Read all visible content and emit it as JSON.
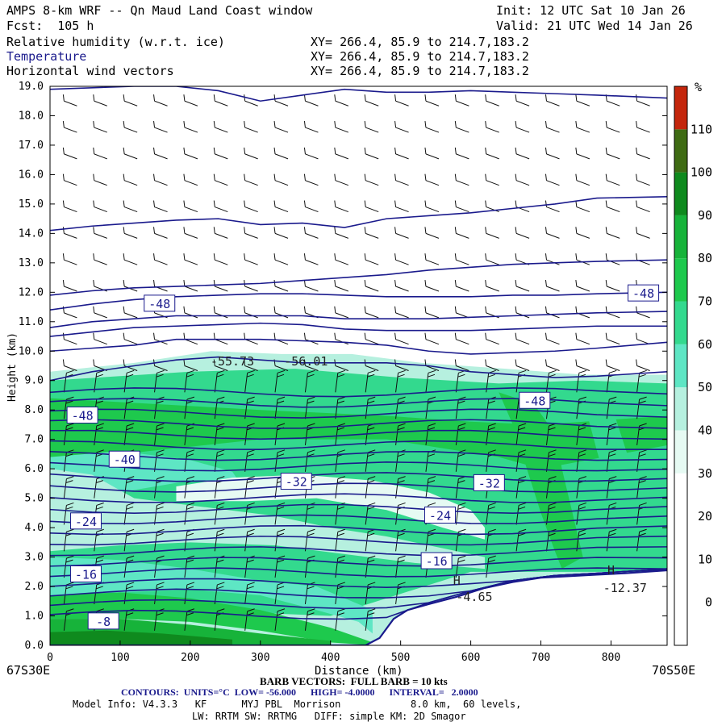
{
  "header": {
    "title": "AMPS 8-km WRF -- Qn Maud Land Coast window",
    "init": "Init: 12 UTC Sat 10 Jan 26",
    "fcst": "Fcst:  105 h",
    "valid": "Valid: 21 UTC Wed 14 Jan 26",
    "fields": [
      {
        "name": "Relative humidity (w.r.t. ice)",
        "xy": "XY= 266.4, 85.9 to 214.7,183.2"
      },
      {
        "name": "Temperature",
        "xy": "XY= 266.4, 85.9 to 214.7,183.2"
      },
      {
        "name": "Horizontal wind vectors",
        "xy": "XY= 266.4, 85.9 to 214.7,183.2"
      }
    ]
  },
  "footer": {
    "left_endpoint": "67S30E",
    "right_endpoint": "70S50E",
    "barb_note": "BARB VECTORS:  FULL BARB = 10 kts",
    "contours_line": "CONTOURS:  UNITS=°C  LOW= -56.000      HIGH= -4.0000      INTERVAL=   2.0000",
    "model_line1": "Model Info: V4.3.3   KF      MYJ PBL  Morrison            8.0 km,  60 levels,",
    "model_line2": "LW: RRTM SW: RRTMG   DIFF: simple KM: 2D Smagor"
  },
  "colors": {
    "temperature_contour": "#1a1a8c",
    "terrain": "#ffffff",
    "rh_bands": [
      "#ffffff",
      "#ffffff",
      "#ffffff",
      "#ffffff",
      "#e6faf3",
      "#b6f0df",
      "#5ee6c4",
      "#33d98e",
      "#1ec94d",
      "#17b33a",
      "#0f8a1e",
      "#3f6b13",
      "#c4260c"
    ]
  },
  "chart_data": {
    "type": "cross-section",
    "xlabel": "Distance (km)",
    "ylabel": "Height (km)",
    "xlim": [
      0,
      880
    ],
    "ylim": [
      0,
      19
    ],
    "x_ticks": [
      0,
      100,
      200,
      300,
      400,
      500,
      600,
      700,
      800
    ],
    "y_ticks": [
      "0.0",
      "1.0",
      "2.0",
      "3.0",
      "4.0",
      "5.0",
      "6.0",
      "7.0",
      "8.0",
      "9.0",
      "10.0",
      "11.0",
      "12.0",
      "13.0",
      "14.0",
      "15.0",
      "16.0",
      "17.0",
      "18.0",
      "19.0"
    ],
    "colorbar": {
      "unit": "%",
      "labels": [
        0,
        10,
        20,
        30,
        40,
        50,
        60,
        70,
        80,
        90,
        100,
        110
      ]
    },
    "terrain_profile": {
      "x": [
        0,
        100,
        200,
        300,
        400,
        450,
        470,
        490,
        510,
        540,
        580,
        620,
        660,
        700,
        740,
        780,
        820,
        880
      ],
      "z": [
        0,
        0,
        0,
        0,
        0,
        0,
        0.25,
        0.9,
        1.2,
        1.4,
        1.65,
        1.95,
        2.15,
        2.3,
        2.35,
        2.4,
        2.45,
        2.55
      ]
    },
    "temperature_labels": [
      {
        "text": "-48",
        "x": 155,
        "z": 11.6
      },
      {
        "text": "-48",
        "x": 845,
        "z": 11.95
      },
      {
        "text": "-48",
        "x": 45,
        "z": 7.8
      },
      {
        "text": "-48",
        "x": 690,
        "z": 8.3
      },
      {
        "text": "-40",
        "x": 105,
        "z": 6.3
      },
      {
        "text": "-32",
        "x": 350,
        "z": 5.55
      },
      {
        "text": "-32",
        "x": 625,
        "z": 5.5
      },
      {
        "text": "-24",
        "x": 50,
        "z": 4.2
      },
      {
        "text": "-24",
        "x": 555,
        "z": 4.4
      },
      {
        "text": "-16",
        "x": 50,
        "z": 2.4
      },
      {
        "text": "-16",
        "x": 550,
        "z": 2.85
      },
      {
        "text": "-8",
        "x": 75,
        "z": 0.8
      }
    ],
    "annotations": [
      {
        "text": "-55.73",
        "x": 260,
        "z": 9.65
      },
      {
        "text": "-56.01",
        "x": 365,
        "z": 9.65
      },
      {
        "text": "-4.65",
        "x": 605,
        "z": 1.65
      },
      {
        "text": "H",
        "x": 580,
        "z": 2.2
      },
      {
        "text": "H",
        "x": 800,
        "z": 2.55
      },
      {
        "text": "-12.37",
        "x": 820,
        "z": 1.95
      }
    ],
    "isotherm_levels": [
      -56,
      -54,
      -52,
      -50,
      -48,
      -46,
      -44,
      -42,
      -40,
      -38,
      -36,
      -34,
      -32,
      -30,
      -28,
      -26,
      -24,
      -22,
      -20,
      -18,
      -16,
      -14,
      -12,
      -10,
      -8,
      -6,
      -4
    ]
  }
}
